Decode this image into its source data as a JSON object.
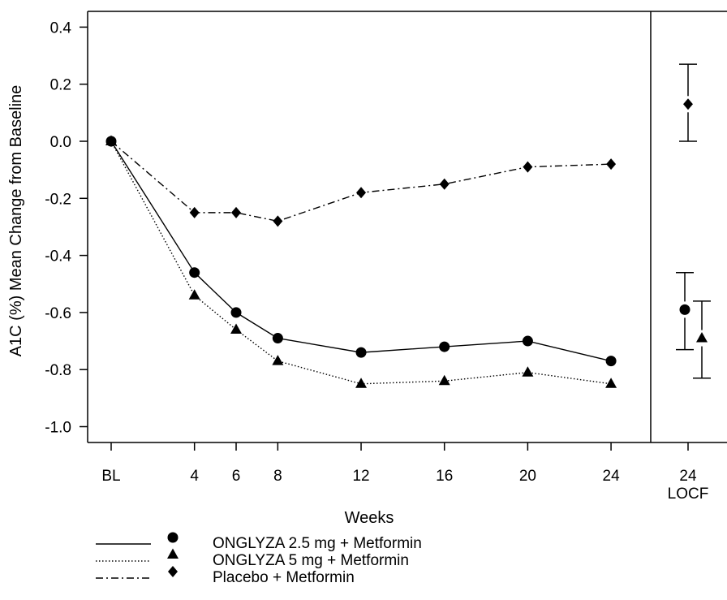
{
  "chart_data": {
    "type": "line",
    "xlabel": "Weeks",
    "ylabel": "A1C (%) Mean Change from Baseline",
    "ylim": [
      -1.1,
      0.45
    ],
    "yticks": [
      "0.4",
      "0.2",
      "0.0",
      "-0.2",
      "-0.4",
      "-0.6",
      "-0.8",
      "-1.0"
    ],
    "x_tick_labels": [
      "BL",
      "4",
      "6",
      "8",
      "12",
      "16",
      "20",
      "24"
    ],
    "locf_tick_labels": [
      "24",
      "LOCF"
    ],
    "x": [
      0,
      4,
      6,
      8,
      12,
      16,
      20,
      24
    ],
    "series": [
      {
        "name": "ONGLYZA 2.5 mg + Metformin",
        "marker": "circle",
        "line_style": "solid",
        "values": [
          0.0,
          -0.46,
          -0.6,
          -0.69,
          -0.74,
          -0.72,
          -0.7,
          -0.77
        ],
        "locf": {
          "mean": -0.59,
          "lower": -0.73,
          "upper": -0.46
        }
      },
      {
        "name": "ONGLYZA 5 mg + Metformin",
        "marker": "triangle",
        "line_style": "dotted",
        "values": [
          0.0,
          -0.54,
          -0.66,
          -0.77,
          -0.85,
          -0.84,
          -0.81,
          -0.85
        ],
        "locf": {
          "mean": -0.69,
          "lower": -0.83,
          "upper": -0.56
        }
      },
      {
        "name": "Placebo + Metformin",
        "marker": "diamond",
        "line_style": "dash-dot",
        "values": [
          0.0,
          -0.25,
          -0.25,
          -0.28,
          -0.18,
          -0.15,
          -0.09,
          -0.08
        ],
        "locf": {
          "mean": 0.13,
          "lower": 0.0,
          "upper": 0.27
        }
      }
    ],
    "grid": false,
    "legend_position": "bottom-left"
  }
}
